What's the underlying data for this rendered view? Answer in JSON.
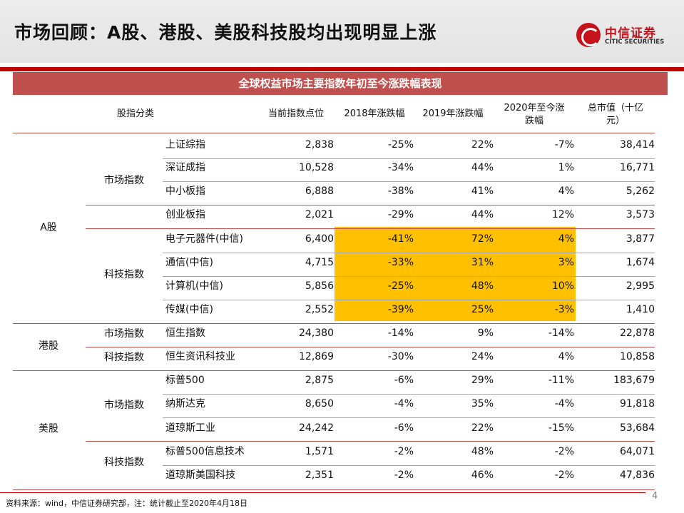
{
  "slide_title": "市场回顾：A股、港股、美股科技股均出现明显上涨",
  "logo": {
    "cn": "中信证券",
    "en": "CITIC SECURITIES"
  },
  "table": {
    "title": "全球权益市场主要指数年初至今涨跌幅表现",
    "headers": {
      "category": "股指分类",
      "current": "当前指数点位",
      "y2018": "2018年涨跌幅",
      "y2019": "2019年涨跌幅",
      "ytd_line1": "2020年至今涨",
      "ytd_line2": "跌幅",
      "mcap_line1": "总市值（十亿",
      "mcap_line2": "元）"
    },
    "markets": [
      "A股",
      "港股",
      "美股"
    ],
    "groups": [
      "市场指数",
      "科技指数",
      "市场指数",
      "科技指数",
      "市场指数",
      "科技指数"
    ],
    "rows": [
      {
        "name": "上证综指",
        "current": "2,838",
        "y2018": "-25%",
        "y2019": "22%",
        "ytd": "-7%",
        "mcap": "38,414"
      },
      {
        "name": "深证成指",
        "current": "10,528",
        "y2018": "-34%",
        "y2019": "44%",
        "ytd": "1%",
        "mcap": "16,771"
      },
      {
        "name": "中小板指",
        "current": "6,888",
        "y2018": "-38%",
        "y2019": "41%",
        "ytd": "4%",
        "mcap": "5,262"
      },
      {
        "name": "创业板指",
        "current": "2,021",
        "y2018": "-29%",
        "y2019": "44%",
        "ytd": "12%",
        "mcap": "3,573"
      },
      {
        "name": "电子元器件(中信)",
        "current": "6,400",
        "y2018": "-41%",
        "y2019": "72%",
        "ytd": "4%",
        "mcap": "3,877"
      },
      {
        "name": "通信(中信)",
        "current": "4,715",
        "y2018": "-33%",
        "y2019": "31%",
        "ytd": "3%",
        "mcap": "1,674"
      },
      {
        "name": "计算机(中信)",
        "current": "5,856",
        "y2018": "-25%",
        "y2019": "48%",
        "ytd": "10%",
        "mcap": "2,995"
      },
      {
        "name": "传媒(中信)",
        "current": "2,552",
        "y2018": "-39%",
        "y2019": "25%",
        "ytd": "-3%",
        "mcap": "1,410"
      },
      {
        "name": "恒生指数",
        "current": "24,380",
        "y2018": "-14%",
        "y2019": "9%",
        "ytd": "-14%",
        "mcap": "22,878"
      },
      {
        "name": "恒生资讯科技业",
        "current": "12,869",
        "y2018": "-30%",
        "y2019": "24%",
        "ytd": "4%",
        "mcap": "10,858"
      },
      {
        "name": "标普500",
        "current": "2,875",
        "y2018": "-6%",
        "y2019": "29%",
        "ytd": "-11%",
        "mcap": "183,679"
      },
      {
        "name": "纳斯达克",
        "current": "8,650",
        "y2018": "-4%",
        "y2019": "35%",
        "ytd": "-4%",
        "mcap": "91,818"
      },
      {
        "name": "道琼斯工业",
        "current": "24,242",
        "y2018": "-6%",
        "y2019": "22%",
        "ytd": "-15%",
        "mcap": "53,684"
      },
      {
        "name": "标普500信息技术",
        "current": "1,571",
        "y2018": "-2%",
        "y2019": "48%",
        "ytd": "-2%",
        "mcap": "64,071"
      },
      {
        "name": "道琼斯美国科技",
        "current": "2,351",
        "y2018": "-2%",
        "y2019": "46%",
        "ytd": "-2%",
        "mcap": "47,836"
      }
    ]
  },
  "highlight_color": "#ffc000",
  "accent_color": "#c0504d",
  "page_number": "4",
  "source": "资料来源：wind，中信证券研究部，注：统计截止至2020年4月18日"
}
